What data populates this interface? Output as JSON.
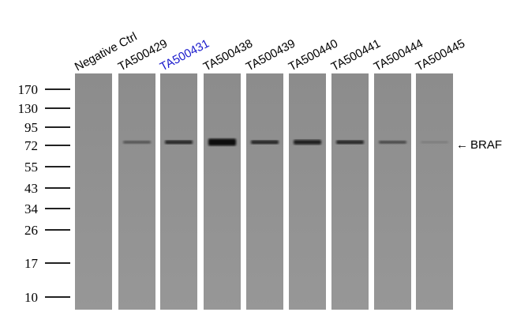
{
  "lanes": [
    {
      "label": "Negative Ctrl"
    },
    {
      "label": "TA500429"
    },
    {
      "label": "TA500431"
    },
    {
      "label": "TA500438"
    },
    {
      "label": "TA500439"
    },
    {
      "label": "TA500440"
    },
    {
      "label": "TA500441"
    },
    {
      "label": "TA500444"
    },
    {
      "label": "TA500445"
    }
  ],
  "markers": [
    "170",
    "130",
    "95",
    "72",
    "55",
    "43",
    "34",
    "26",
    "17",
    "10"
  ],
  "band_label": "BRAF"
}
